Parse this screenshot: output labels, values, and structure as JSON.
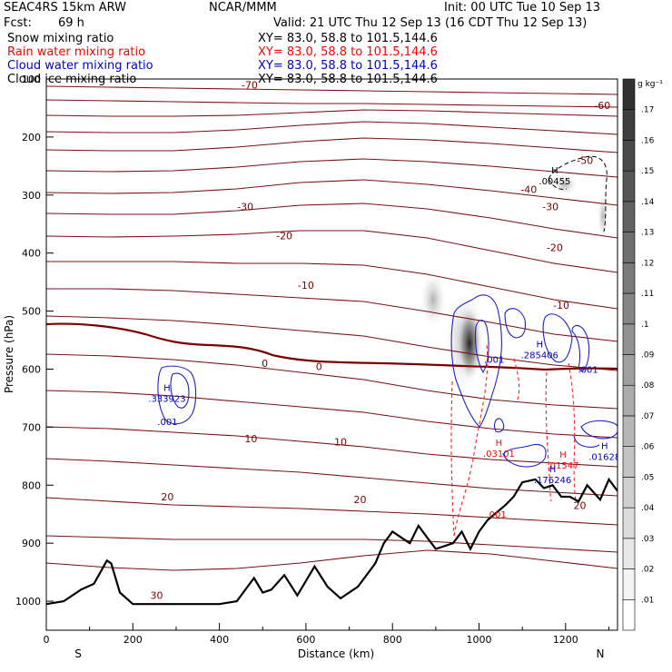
{
  "header": {
    "model": "SEAC4RS 15km ARW",
    "org": "NCAR/MMM",
    "init": "Init: 00 UTC Tue 10 Sep 13",
    "fcst_label": "Fcst:",
    "fcst_value": "69 h",
    "valid": "Valid: 21 UTC Thu 12 Sep 13 (16 CDT Thu 12 Sep 13)"
  },
  "fields": [
    {
      "name": "Snow mixing ratio",
      "xy": "XY=  83.0, 58.8 to 101.5,144.6",
      "color": "#000000"
    },
    {
      "name": "Rain water mixing ratio",
      "xy": "XY=  83.0, 58.8 to 101.5,144.6",
      "color": "#ff0000"
    },
    {
      "name": "Cloud water mixing ratio",
      "xy": "XY=  83.0, 58.8 to 101.5,144.6",
      "color": "#0000cc"
    },
    {
      "name": "Cloud ice mixing ratio",
      "xy": "XY=  83.0, 58.8 to 101.5,144.6",
      "color": "#000000"
    }
  ],
  "chart_data": {
    "type": "cross-section",
    "xlabel": "Distance (km)",
    "ylabel": "Pressure (hPa)",
    "xlim": [
      0,
      1320
    ],
    "ylim": [
      1050,
      100
    ],
    "x_ticks": [
      0,
      200,
      400,
      600,
      800,
      1000,
      1200
    ],
    "y_ticks": [
      100,
      200,
      300,
      400,
      500,
      600,
      700,
      800,
      900,
      1000
    ],
    "left_endpoint": "S",
    "right_endpoint": "N",
    "colorbar": {
      "unit": "g kg⁻¹",
      "levels": [
        ".01",
        ".02",
        ".03",
        ".04",
        ".05",
        ".06",
        ".07",
        ".08",
        ".09",
        ".1",
        ".11",
        ".12",
        ".13",
        ".14",
        ".15",
        ".16",
        ".17"
      ]
    },
    "terrain": [
      [
        0,
        1005
      ],
      [
        40,
        1000
      ],
      [
        80,
        980
      ],
      [
        110,
        970
      ],
      [
        140,
        930
      ],
      [
        150,
        935
      ],
      [
        170,
        985
      ],
      [
        200,
        1005
      ],
      [
        300,
        1005
      ],
      [
        400,
        1005
      ],
      [
        440,
        1000
      ],
      [
        480,
        960
      ],
      [
        500,
        985
      ],
      [
        520,
        980
      ],
      [
        550,
        955
      ],
      [
        580,
        990
      ],
      [
        600,
        965
      ],
      [
        620,
        940
      ],
      [
        650,
        975
      ],
      [
        680,
        995
      ],
      [
        720,
        975
      ],
      [
        760,
        935
      ],
      [
        780,
        900
      ],
      [
        800,
        880
      ],
      [
        820,
        890
      ],
      [
        840,
        900
      ],
      [
        860,
        870
      ],
      [
        880,
        890
      ],
      [
        900,
        910
      ],
      [
        940,
        900
      ],
      [
        960,
        880
      ],
      [
        980,
        910
      ],
      [
        1000,
        880
      ],
      [
        1020,
        860
      ],
      [
        1060,
        835
      ],
      [
        1080,
        820
      ],
      [
        1100,
        795
      ],
      [
        1130,
        790
      ],
      [
        1150,
        805
      ],
      [
        1170,
        800
      ],
      [
        1190,
        820
      ],
      [
        1210,
        820
      ],
      [
        1230,
        828
      ],
      [
        1250,
        800
      ],
      [
        1280,
        825
      ],
      [
        1300,
        790
      ],
      [
        1320,
        810
      ]
    ],
    "isotherm_labels": [
      {
        "text": "-70",
        "x": 470,
        "p": 110
      },
      {
        "text": "-60",
        "x": 1285,
        "p": 145
      },
      {
        "text": "-50",
        "x": 1245,
        "p": 240
      },
      {
        "text": "-40",
        "x": 1115,
        "p": 290
      },
      {
        "text": "-30",
        "x": 460,
        "p": 320
      },
      {
        "text": "-30",
        "x": 1165,
        "p": 320
      },
      {
        "text": "-20",
        "x": 550,
        "p": 370
      },
      {
        "text": "-20",
        "x": 1175,
        "p": 390
      },
      {
        "text": "-10",
        "x": 600,
        "p": 455
      },
      {
        "text": "-10",
        "x": 1190,
        "p": 490
      },
      {
        "text": "0",
        "x": 505,
        "p": 590
      },
      {
        "text": "0",
        "x": 630,
        "p": 595
      },
      {
        "text": "10",
        "x": 473,
        "p": 720
      },
      {
        "text": "10",
        "x": 680,
        "p": 725
      },
      {
        "text": "20",
        "x": 280,
        "p": 820
      },
      {
        "text": "20",
        "x": 725,
        "p": 825
      },
      {
        "text": "20",
        "x": 1233,
        "p": 835
      },
      {
        "text": "30",
        "x": 255,
        "p": 990
      }
    ],
    "extrema": [
      {
        "mark": "H",
        "value": ".00455",
        "x": 1175,
        "p": 275,
        "series": "Cloud ice mixing ratio"
      },
      {
        "mark": "H",
        "value": ".285406",
        "x": 1140,
        "p": 575,
        "series": "Cloud water mixing ratio"
      },
      {
        "mark": "H",
        "value": ".333923",
        "x": 279,
        "p": 650,
        "series": "Cloud water mixing ratio"
      },
      {
        "mark": "H",
        "value": ".03101",
        "x": 1046,
        "p": 745,
        "series": "Rain water mixing ratio"
      },
      {
        "mark": "H",
        "value": ".01547",
        "x": 1194,
        "p": 765,
        "series": "Rain water mixing ratio"
      },
      {
        "mark": "H",
        "value": ".176246",
        "x": 1170,
        "p": 790,
        "series": "Cloud water mixing ratio"
      },
      {
        "mark": "H",
        "value": ".01628",
        "x": 1290,
        "p": 750,
        "series": "Cloud water mixing ratio"
      }
    ],
    "contour_labels": [
      {
        "text": ".001",
        "x": 1035,
        "p": 583,
        "color": "#0000cc"
      },
      {
        "text": ".001",
        "x": 1252,
        "p": 600,
        "color": "#0000cc"
      },
      {
        "text": ".001",
        "x": 280,
        "p": 690,
        "color": "#0000cc"
      },
      {
        "text": ".001",
        "x": 1040,
        "p": 850,
        "color": "#ff0000"
      }
    ]
  }
}
